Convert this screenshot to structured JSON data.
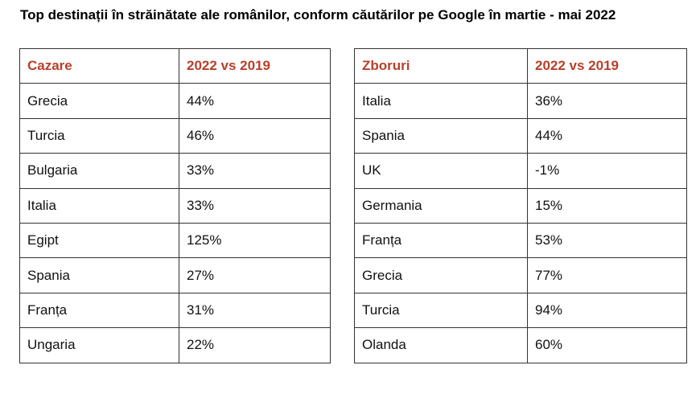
{
  "title": "Top destinații în străinătate ale românilor, conform căutărilor pe Google în martie - mai 2022",
  "tables": [
    {
      "header": [
        "Cazare",
        "2022 vs 2019"
      ],
      "rows": [
        [
          "Grecia",
          "44%"
        ],
        [
          "Turcia",
          "46%"
        ],
        [
          "Bulgaria",
          "33%"
        ],
        [
          "Italia",
          "33%"
        ],
        [
          "Egipt",
          "125%"
        ],
        [
          "Spania",
          "27%"
        ],
        [
          "Franța",
          "31%"
        ],
        [
          "Ungaria",
          "22%"
        ]
      ]
    },
    {
      "header": [
        "Zboruri",
        "2022 vs 2019"
      ],
      "rows": [
        [
          "Italia",
          "36%"
        ],
        [
          "Spania",
          "44%"
        ],
        [
          "UK",
          "-1%"
        ],
        [
          "Germania",
          "15%"
        ],
        [
          "Franța",
          "53%"
        ],
        [
          "Grecia",
          "77%"
        ],
        [
          "Turcia",
          "94%"
        ],
        [
          "Olanda",
          "60%"
        ]
      ]
    }
  ]
}
